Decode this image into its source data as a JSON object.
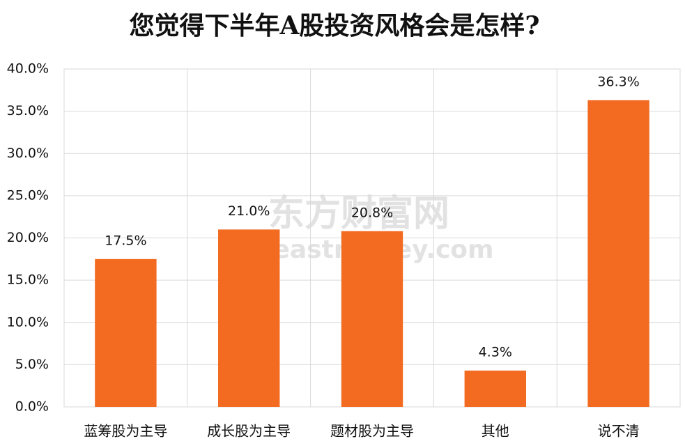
{
  "chart_data": {
    "type": "bar",
    "title": "您觉得下半年A股投资风格会是怎样?",
    "categories": [
      "蓝筹股为主导",
      "成长股为主导",
      "题材股为主导",
      "其他",
      "说不清"
    ],
    "values": [
      17.5,
      21.0,
      20.8,
      4.3,
      36.3
    ],
    "value_labels": [
      "17.5%",
      "21.0%",
      "20.8%",
      "4.3%",
      "36.3%"
    ],
    "color": "#f26b21",
    "ylim": [
      0,
      40
    ],
    "yticks": [
      {
        "value": 0,
        "label": "0.0%"
      },
      {
        "value": 5,
        "label": "5.0%"
      },
      {
        "value": 10,
        "label": "10.0%"
      },
      {
        "value": 15,
        "label": "15.0%"
      },
      {
        "value": 20,
        "label": "20.0%"
      },
      {
        "value": 25,
        "label": "25.0%"
      },
      {
        "value": 30,
        "label": "30.0%"
      },
      {
        "value": 35,
        "label": "35.0%"
      },
      {
        "value": 40,
        "label": "40.0%"
      }
    ],
    "grid": true,
    "watermark": [
      "东方财富网",
      "eastmoney.com"
    ]
  }
}
